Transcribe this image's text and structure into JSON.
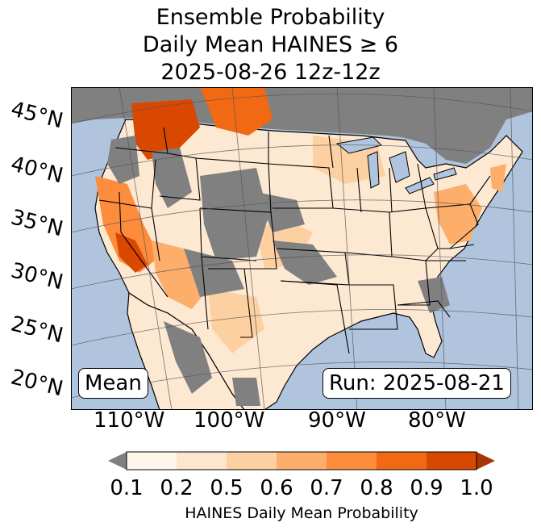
{
  "title": {
    "line1": "Ensemble Probability",
    "line2": "Daily Mean HAINES ≥ 6",
    "line3": "2025-08-26 12z-12z"
  },
  "map": {
    "ocean_color": "#b0c4de",
    "land_missing_color": "#808080",
    "lat_labels": [
      "45°N",
      "40°N",
      "35°N",
      "30°N",
      "25°N",
      "20°N"
    ],
    "lon_labels": [
      "110°W",
      "100°W",
      "90°W",
      "80°W"
    ],
    "stat_label": "Mean",
    "run_label": "Run: 2025-08-21"
  },
  "colorbar": {
    "ticks": [
      "0.1",
      "0.2",
      "0.5",
      "0.6",
      "0.7",
      "0.8",
      "0.9",
      "1.0"
    ],
    "colors": [
      "#fff5eb",
      "#fee6ce",
      "#fdd0a2",
      "#fdae6b",
      "#fd8d3c",
      "#f16913",
      "#d94801"
    ],
    "under_color": "#808080",
    "over_color": "#a63603",
    "label": "HAINES Daily Mean Probability"
  }
}
